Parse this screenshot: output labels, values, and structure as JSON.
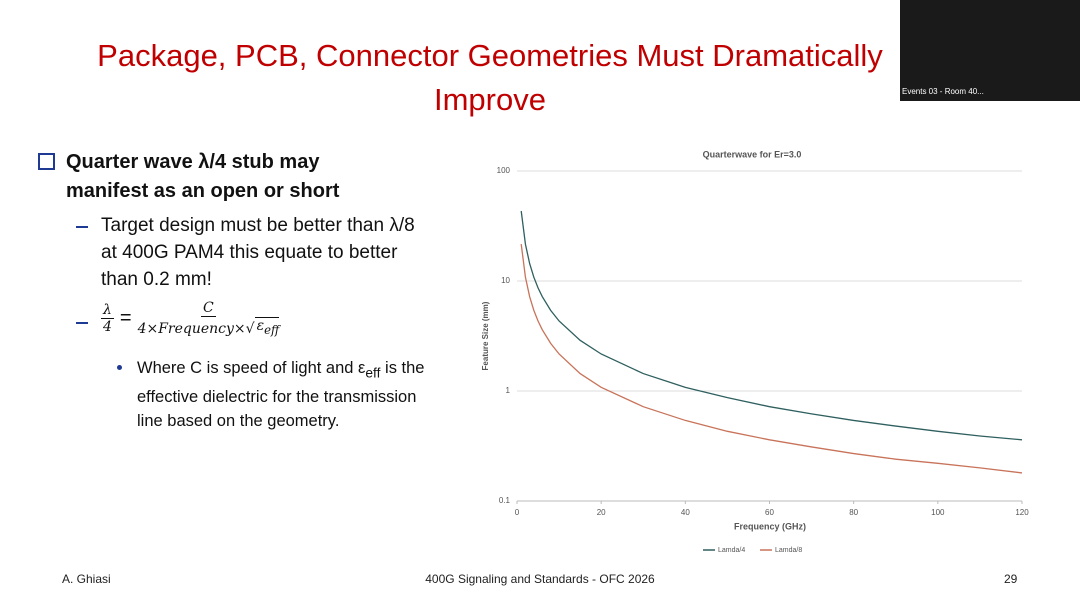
{
  "header": {
    "title": "Package, PCB, Connector Geometries Must Dramatically Improve"
  },
  "bullets": {
    "main": "Quarter wave λ/4 stub may manifest as an open or short",
    "sub1": "Target design must be better than λ/8 at 400G PAM4 this equate to better than 0.2 mm!",
    "formula": {
      "lhs_num": "λ",
      "lhs_den": "4",
      "eq": "=",
      "rhs_num": "C",
      "rhs_den": "4×Frequency×",
      "radicand": "ε",
      "radicand_sub": "eff"
    },
    "note": [
      "Where C is speed of light and ε",
      "eff",
      " is the effective dielectric for the transmission line based on the geometry."
    ]
  },
  "footer": {
    "author": "A. Ghiasi",
    "event": "400G Signaling and Standards - OFC 2026",
    "page": "29"
  },
  "video": {
    "caption": "Events 03 - Room 40..."
  },
  "chart_data": {
    "type": "line",
    "title": "Quarterwave for Er=3.0",
    "x_label": "Frequency (GHz)",
    "y_label": "Feature Size (mm)",
    "x": [
      1,
      2,
      3,
      4,
      5,
      6,
      8,
      10,
      15,
      20,
      30,
      40,
      50,
      60,
      70,
      80,
      90,
      100,
      110,
      120
    ],
    "series": [
      {
        "name": "Lamda/4",
        "color": "#2f5f5f",
        "values": [
          43.3,
          21.65,
          14.43,
          10.83,
          8.66,
          7.22,
          5.41,
          4.33,
          2.89,
          2.17,
          1.44,
          1.08,
          0.87,
          0.72,
          0.62,
          0.54,
          0.48,
          0.43,
          0.39,
          0.36
        ]
      },
      {
        "name": "Lamda/8",
        "color": "#c8735a",
        "values": [
          21.65,
          10.83,
          7.22,
          5.41,
          4.33,
          3.61,
          2.71,
          2.17,
          1.44,
          1.08,
          0.72,
          0.54,
          0.43,
          0.36,
          0.31,
          0.27,
          0.24,
          0.22,
          0.2,
          0.18
        ]
      }
    ],
    "xlim": [
      0,
      120
    ],
    "xticks": [
      0,
      20,
      40,
      60,
      80,
      100,
      120
    ],
    "ylim": [
      0.1,
      100
    ],
    "yticks": [
      0.1,
      1,
      10,
      100
    ],
    "log_y": true,
    "grid": true,
    "legend": "bottom"
  }
}
